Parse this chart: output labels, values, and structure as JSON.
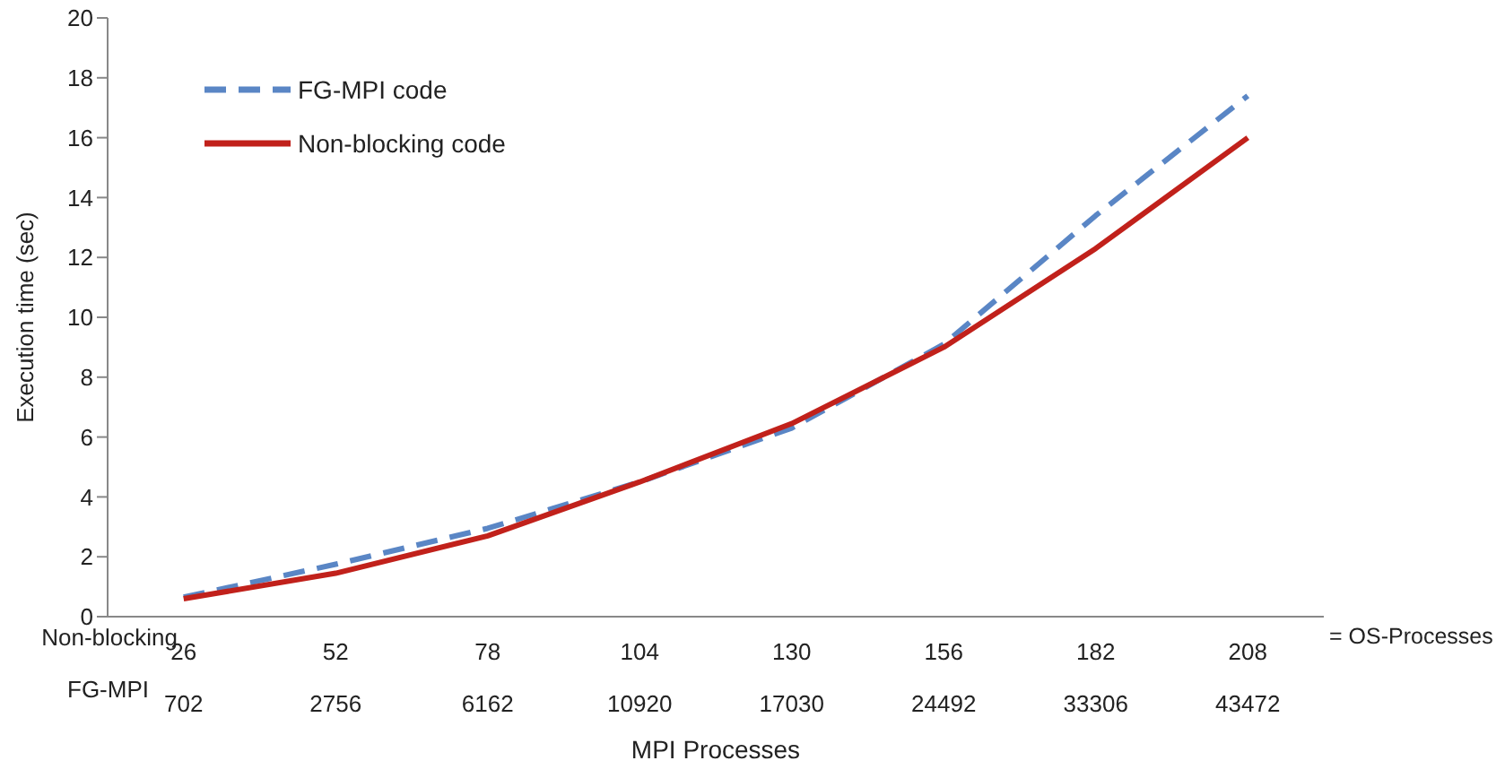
{
  "chart_data": {
    "type": "line",
    "xlabel": "MPI Processes",
    "ylabel": "Execution time (sec)",
    "categories": [
      "26\n702",
      "52\n2756",
      "78\n6162",
      "104\n10920",
      "130\n17030",
      "156\n24492",
      "182\n33306",
      "208\n43472"
    ],
    "series": [
      {
        "name": "FG-MPI code",
        "color": "#5a86c5",
        "line_style": "dashed",
        "values": [
          0.65,
          1.75,
          2.95,
          4.5,
          6.3,
          9.1,
          13.4,
          17.4
        ]
      },
      {
        "name": "Non-blocking code",
        "color": "#c1211b",
        "line_style": "solid",
        "values": [
          0.6,
          1.45,
          2.7,
          4.5,
          6.45,
          9.0,
          12.3,
          16.0
        ]
      }
    ],
    "ylim": [
      0,
      20
    ],
    "yticks": [
      0,
      2,
      4,
      6,
      8,
      10,
      12,
      14,
      16,
      18,
      20
    ],
    "grid": false,
    "legend": "top left",
    "marker": "none",
    "annotations": [
      "Non-blocking",
      "FG-MPI",
      "= OS-Processes"
    ]
  }
}
